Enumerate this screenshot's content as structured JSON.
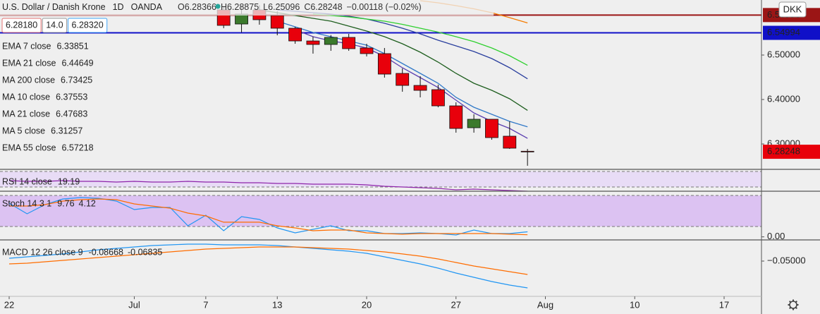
{
  "chart_data": [
    {
      "type": "candlestick",
      "title": "U.S. Dollar / Danish Krone",
      "interval": "1D",
      "source": "OANDA",
      "quote": [
        "O6.28366",
        "H6.28875",
        "L6.25096",
        "C6.28248",
        "−0.00118 (−0.02%)"
      ],
      "buttons": [
        "6.28180",
        "14.0",
        "6.28320"
      ],
      "currency": "DKK",
      "categories": [
        "22",
        null,
        null,
        null,
        null,
        null,
        null,
        "Jul",
        null,
        null,
        null,
        "7",
        null,
        null,
        null,
        "13",
        null,
        null,
        null,
        null,
        "20",
        null,
        null,
        null,
        null,
        "27",
        null,
        null,
        null,
        null,
        "Aug",
        null,
        null,
        null,
        null,
        "10",
        null,
        null,
        null,
        null,
        "17"
      ],
      "open": [
        null,
        null,
        null,
        null,
        null,
        null,
        null,
        null,
        null,
        null,
        null,
        null,
        6.6016,
        6.5698,
        6.6016,
        6.5889,
        6.5603,
        6.5317,
        6.5238,
        6.5397,
        6.5159,
        6.5032,
        6.4587,
        6.4317,
        6.4222,
        6.3857,
        6.3365,
        6.3556,
        6.3175,
        6.28366,
        null,
        null,
        null,
        null,
        null,
        null,
        null,
        null,
        null,
        null,
        null
      ],
      "high": [
        null,
        null,
        null,
        null,
        null,
        null,
        null,
        null,
        null,
        null,
        null,
        null,
        6.61,
        6.61,
        6.612,
        6.5984,
        6.5635,
        6.5413,
        6.545,
        6.5476,
        6.5254,
        6.5159,
        6.4698,
        6.4524,
        6.4333,
        6.3937,
        6.3667,
        6.3556,
        6.3508,
        6.28875,
        null,
        null,
        null,
        null,
        null,
        null,
        null,
        null,
        null,
        null,
        null
      ],
      "low": [
        null,
        null,
        null,
        null,
        null,
        null,
        null,
        null,
        null,
        null,
        null,
        null,
        6.5603,
        6.5508,
        6.5683,
        6.5444,
        6.5254,
        6.5032,
        6.5095,
        6.5095,
        6.4968,
        6.4492,
        6.4175,
        6.4048,
        6.3825,
        6.3254,
        6.3254,
        6.3095,
        6.2889,
        6.25096,
        null,
        null,
        null,
        null,
        null,
        null,
        null,
        null,
        null,
        null,
        null
      ],
      "close": [
        null,
        null,
        null,
        null,
        null,
        null,
        null,
        null,
        null,
        null,
        null,
        null,
        6.5667,
        6.5921,
        6.5794,
        6.5603,
        6.5317,
        6.5238,
        6.5397,
        6.5143,
        6.5032,
        6.4571,
        6.4317,
        6.4206,
        6.3857,
        6.3349,
        6.3556,
        6.3143,
        6.2905,
        6.28248,
        null,
        null,
        null,
        null,
        null,
        null,
        null,
        null,
        null,
        null,
        null
      ],
      "up_color": "#3b7a2c",
      "down_color": "#e8000b",
      "lines": [
        {
          "name": "EMA 7 close",
          "color": "#3179c8",
          "last": 6.33851,
          "values": [
            null,
            null,
            null,
            null,
            null,
            null,
            null,
            null,
            null,
            null,
            null,
            null,
            null,
            null,
            null,
            6.5762,
            6.5635,
            6.5508,
            6.5413,
            6.5317,
            6.5222,
            6.5032,
            6.481,
            6.4587,
            6.4365,
            6.4048,
            6.3825,
            6.3667,
            6.3508,
            6.33851,
            null,
            null,
            null,
            null,
            null,
            null,
            null,
            null,
            null,
            null,
            null
          ]
        },
        {
          "name": "EMA 21 close",
          "color": "#2a3f9e",
          "last": 6.44649,
          "values": [
            null,
            null,
            null,
            null,
            null,
            null,
            null,
            null,
            null,
            null,
            null,
            null,
            null,
            null,
            null,
            6.6016,
            6.5984,
            6.5952,
            6.5921,
            6.5873,
            6.5809,
            6.5714,
            6.5603,
            6.5476,
            6.5333,
            6.5206,
            6.5079,
            6.4921,
            6.4714,
            6.44649,
            null,
            null,
            null,
            null,
            null,
            null,
            null,
            null,
            null,
            null,
            null
          ]
        },
        {
          "name": "MA 200 close",
          "color": "#e01010",
          "last": 6.73425
        },
        {
          "name": "MA 10 close",
          "color": "#1e5e1e",
          "last": 6.37553,
          "values": [
            null,
            null,
            null,
            null,
            null,
            null,
            null,
            null,
            null,
            null,
            null,
            null,
            null,
            null,
            6.6016,
            6.5952,
            6.5889,
            6.5825,
            6.5762,
            6.5651,
            6.554,
            6.5413,
            6.5254,
            6.5063,
            6.4841,
            6.4587,
            6.4365,
            6.4206,
            6.4016,
            6.37553,
            null,
            null,
            null,
            null,
            null,
            null,
            null,
            null,
            null,
            null,
            null
          ]
        },
        {
          "name": "MA 21 close",
          "color": "#2fd02f",
          "last": 6.47683,
          "values": [
            null,
            null,
            null,
            null,
            null,
            null,
            null,
            null,
            null,
            null,
            null,
            null,
            null,
            null,
            null,
            null,
            null,
            6.5921,
            6.5889,
            6.5857,
            6.581,
            6.5762,
            6.569,
            6.5603,
            6.5516,
            6.5413,
            6.5302,
            6.5159,
            6.4984,
            6.47683,
            null,
            null,
            null,
            null,
            null,
            null,
            null,
            null,
            null,
            null,
            null
          ]
        },
        {
          "name": "MA 5 close",
          "color": "#5b3fb0",
          "last": 6.31257,
          "values": [
            null,
            null,
            null,
            null,
            null,
            null,
            null,
            null,
            null,
            null,
            null,
            null,
            null,
            null,
            null,
            null,
            6.5571,
            6.5413,
            6.5317,
            6.5254,
            6.5159,
            6.4968,
            6.4714,
            6.4492,
            6.427,
            6.3984,
            6.3698,
            6.3508,
            6.3349,
            6.31257,
            null,
            null,
            null,
            null,
            null,
            null,
            null,
            null,
            null,
            null,
            null
          ]
        },
        {
          "name": "EMA 55 close",
          "color": "#f57c00",
          "last": 6.57218,
          "values": [
            null,
            null,
            null,
            null,
            null,
            null,
            null,
            null,
            null,
            null,
            null,
            null,
            null,
            null,
            null,
            null,
            null,
            null,
            null,
            null,
            null,
            null,
            null,
            6.6222,
            6.6175,
            6.6111,
            6.604,
            6.5952,
            6.5841,
            6.57218,
            null,
            null,
            null,
            null,
            null,
            null,
            null,
            null,
            null,
            null,
            null
          ]
        }
      ],
      "hlines": [
        {
          "value": 6.58996,
          "color": "#9b1515"
        },
        {
          "value": 6.54994,
          "color": "#1010c8"
        }
      ],
      "ylim": [
        6.2429,
        6.6238
      ],
      "yticks": [
        {
          "value": 6.5,
          "label": "6.50000"
        },
        {
          "value": 6.4,
          "label": "6.40000"
        },
        {
          "value": 6.3,
          "label": "6.30000"
        }
      ]
    },
    {
      "type": "line",
      "title": "RSI 14 close",
      "ylim": [
        19.1,
        73.6
      ],
      "bands": [
        30,
        70
      ],
      "band_color": "#e8dcf6",
      "series": [
        {
          "color": "#8e24aa",
          "last": 19.19,
          "values": [
            46.4,
            44.5,
            44.5,
            46.4,
            44.5,
            44.5,
            42.7,
            44.5,
            42.7,
            42.7,
            44.5,
            42.7,
            42.7,
            40.9,
            40.9,
            39.1,
            39.1,
            37.3,
            37.3,
            37.3,
            35.5,
            31.8,
            30,
            28.2,
            26.4,
            22.7,
            24.5,
            22.7,
            20.9,
            19.19,
            null,
            null,
            null,
            null,
            null,
            null,
            null,
            null,
            null,
            null,
            null
          ]
        }
      ]
    },
    {
      "type": "line",
      "title": "Stoch 14 3 1",
      "ylim": [
        -5.9,
        86.9
      ],
      "bands": [
        20,
        80
      ],
      "band_color": "#dcc2f2",
      "yticks": [
        {
          "value": 0,
          "label": "0.00"
        }
      ],
      "series": [
        {
          "color": "#2196f3",
          "last": 9.76,
          "values": [
            65.1,
            44.6,
            62.3,
            73.3,
            76.0,
            74.6,
            69.2,
            52.8,
            56.9,
            56.9,
            21.4,
            41.9,
            11.9,
            39.2,
            33.7,
            17.3,
            7.8,
            14.6,
            21.4,
            11.9,
            11.9,
            6.4,
            6.4,
            7.8,
            6.4,
            3.7,
            13.2,
            6.4,
            6.4,
            9.76,
            null,
            null,
            null,
            null,
            null,
            null,
            null,
            null,
            null,
            null,
            null
          ]
        },
        {
          "color": "#ff6d00",
          "last": 4.12,
          "values": [
            59.6,
            59.6,
            62.3,
            69.2,
            71.9,
            73.3,
            71.9,
            63.7,
            59.6,
            55.5,
            46.0,
            40.5,
            28.3,
            28.3,
            28.3,
            21.4,
            17.3,
            11.9,
            13.2,
            13.2,
            7.8,
            6.4,
            5.1,
            6.4,
            6.4,
            6.4,
            6.4,
            6.4,
            5.1,
            4.12,
            null,
            null,
            null,
            null,
            null,
            null,
            null,
            null,
            null,
            null,
            null
          ]
        }
      ]
    },
    {
      "type": "line",
      "title": "MACD 12 26 close 9",
      "ylim": [
        -0.0983,
        -0.022
      ],
      "yticks": [
        {
          "value": -0.05,
          "label": "−0.05000"
        }
      ],
      "series": [
        {
          "color": "#2196f3",
          "last": -0.08668,
          "values": [
            -0.0461,
            -0.0442,
            -0.0423,
            -0.0403,
            -0.0375,
            -0.0346,
            -0.0326,
            -0.0307,
            -0.0288,
            -0.0278,
            -0.0268,
            -0.0268,
            -0.0278,
            -0.0278,
            -0.0278,
            -0.0288,
            -0.0307,
            -0.0326,
            -0.0346,
            -0.0365,
            -0.0394,
            -0.0442,
            -0.049,
            -0.0539,
            -0.0597,
            -0.0664,
            -0.0722,
            -0.078,
            -0.0828,
            -0.08668,
            null,
            null,
            null,
            null,
            null,
            null,
            null,
            null,
            null,
            null,
            null
          ]
        },
        {
          "color": "#ff6d00",
          "last": -0.06835,
          "values": [
            -0.0539,
            -0.0529,
            -0.051,
            -0.049,
            -0.0471,
            -0.0452,
            -0.0432,
            -0.0413,
            -0.0394,
            -0.0375,
            -0.0355,
            -0.0336,
            -0.0326,
            -0.0317,
            -0.0307,
            -0.0307,
            -0.0307,
            -0.0317,
            -0.0326,
            -0.0336,
            -0.0355,
            -0.0375,
            -0.0403,
            -0.0432,
            -0.0471,
            -0.0519,
            -0.0568,
            -0.0606,
            -0.0645,
            -0.06835,
            null,
            null,
            null,
            null,
            null,
            null,
            null,
            null,
            null,
            null,
            null
          ]
        }
      ]
    }
  ]
}
